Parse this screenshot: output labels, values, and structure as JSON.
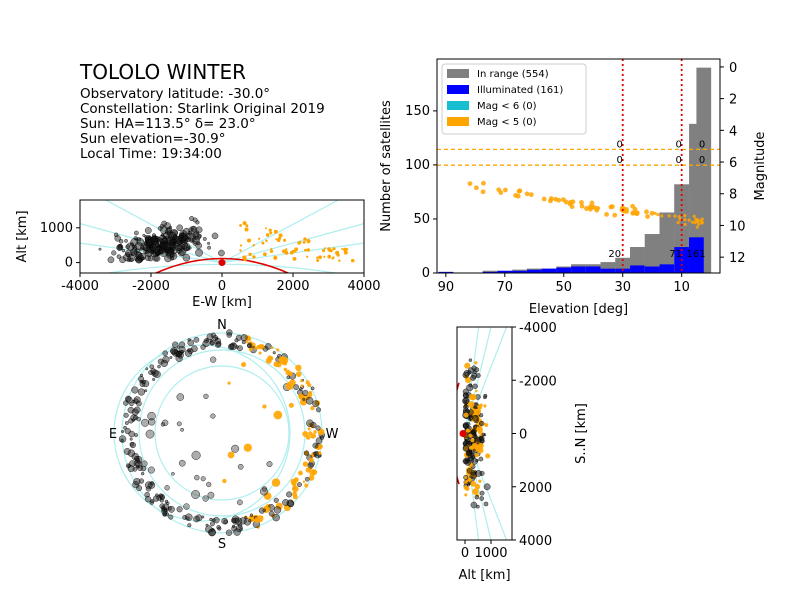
{
  "info": {
    "title": "TOLOLO WINTER",
    "latitude": "Observatory latitude: -30.0°",
    "constellation": "Constellation: Starlink Original 2019",
    "sun": "Sun: HA=113.5° δ= 23.0°",
    "sun_elev": "Sun elevation=-30.9°",
    "time": "Local Time: 19:34:00"
  },
  "colors": {
    "range": "#808080",
    "illum": "#0000ff",
    "mag6": "#17becf",
    "mag5": "#ffa500",
    "earth": "#e00000",
    "contour": "#afeeee",
    "dark": "#141414"
  },
  "chart_data": [
    {
      "type": "scatter",
      "name": "alt_vs_ew",
      "xlabel": "E-W [km]",
      "ylabel": "Alt [km]",
      "xlim": [
        -4000,
        4000
      ],
      "ylim": [
        -300,
        1800
      ],
      "xticks": [
        "-4000",
        "-2000",
        "0",
        "2000",
        "4000"
      ],
      "yticks": [
        "0",
        "1000"
      ]
    },
    {
      "type": "bar",
      "name": "elevation_histogram",
      "xlabel": "Elevation [deg]",
      "ylabel": "Number of satellites",
      "y2label": "Magnitude",
      "xlim": [
        93,
        -3
      ],
      "ylim": [
        0,
        198
      ],
      "y2lim": [
        13,
        -0.5
      ],
      "xticks": [
        "90",
        "70",
        "50",
        "30",
        "10"
      ],
      "yticks": [
        "0",
        "50",
        "100",
        "150"
      ],
      "y2ticks": [
        "0",
        "2",
        "4",
        "6",
        "8",
        "10",
        "12"
      ],
      "legend": [
        "In range (554)",
        "Illuminated (161)",
        "Mag < 6  (0)",
        "Mag < 5 (0)"
      ],
      "legend_position": "top-left",
      "bins": [
        90,
        85,
        80,
        75,
        70,
        65,
        60,
        55,
        50,
        45,
        40,
        35,
        30,
        25,
        20,
        15,
        10,
        5
      ],
      "in_range": [
        1,
        0,
        0,
        2,
        2,
        3,
        4,
        4,
        6,
        8,
        8,
        10,
        14,
        24,
        36,
        56,
        82,
        138
      ],
      "illuminated": [
        1,
        0,
        0,
        1,
        2,
        2,
        3,
        4,
        5,
        6,
        6,
        4,
        4,
        7,
        6,
        8,
        24,
        33
      ],
      "extra_in_range_last_bin": 190,
      "vlines": [
        30,
        10
      ],
      "hlines_magnitude": [
        5.2,
        6.2
      ],
      "annotations": {
        "row1": [
          "0",
          "0",
          "0"
        ],
        "row2": [
          "0",
          "0",
          "0"
        ],
        "bottom": [
          "20",
          "71",
          "161"
        ]
      }
    },
    {
      "type": "scatter",
      "name": "sky_projection",
      "labels": [
        "N",
        "E",
        "W",
        "S"
      ]
    },
    {
      "type": "scatter",
      "name": "alt_vs_sn",
      "xlabel": "Alt [km]",
      "ylabel": "S..N [km]",
      "ylim": [
        -4000,
        4000
      ],
      "xticks": [
        "0",
        "1000"
      ],
      "yticks": [
        "-4000",
        "-2000",
        "0",
        "2000",
        "4000"
      ]
    }
  ]
}
